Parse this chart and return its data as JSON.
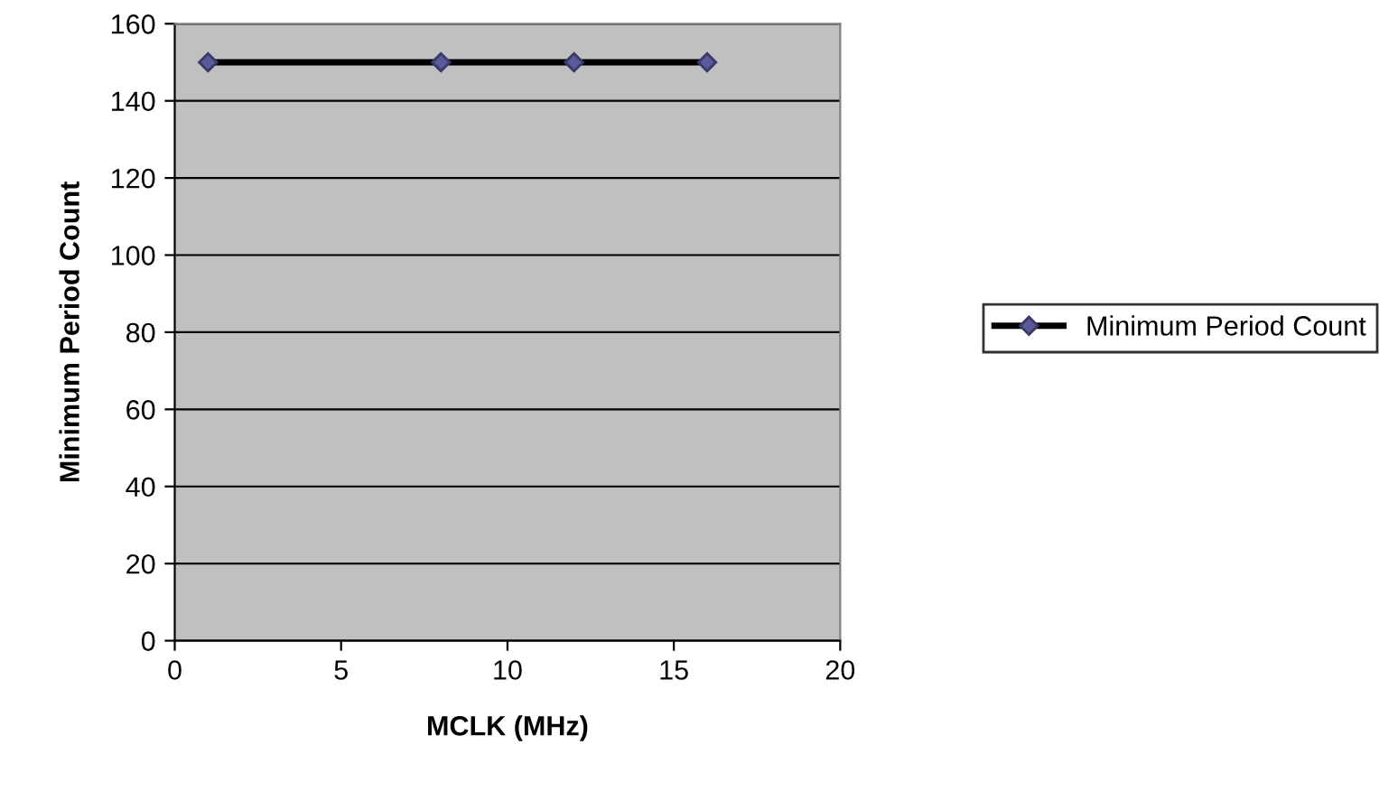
{
  "chart_data": {
    "type": "line",
    "xlabel": "MCLK (MHz)",
    "ylabel": "Minimum Period Count",
    "x": [
      1,
      8,
      12,
      16
    ],
    "series": [
      {
        "name": "Minimum Period Count",
        "color": "#000000",
        "values": [
          150,
          150,
          150,
          150
        ]
      }
    ],
    "xlim": [
      0,
      20
    ],
    "xticks": [
      0,
      5,
      10,
      15,
      20
    ],
    "ylim": [
      0,
      160
    ],
    "yticks": [
      0,
      20,
      40,
      60,
      80,
      100,
      120,
      140,
      160
    ],
    "grid": "y",
    "legend": "right",
    "marker": "diamond",
    "line_style": "solid"
  }
}
